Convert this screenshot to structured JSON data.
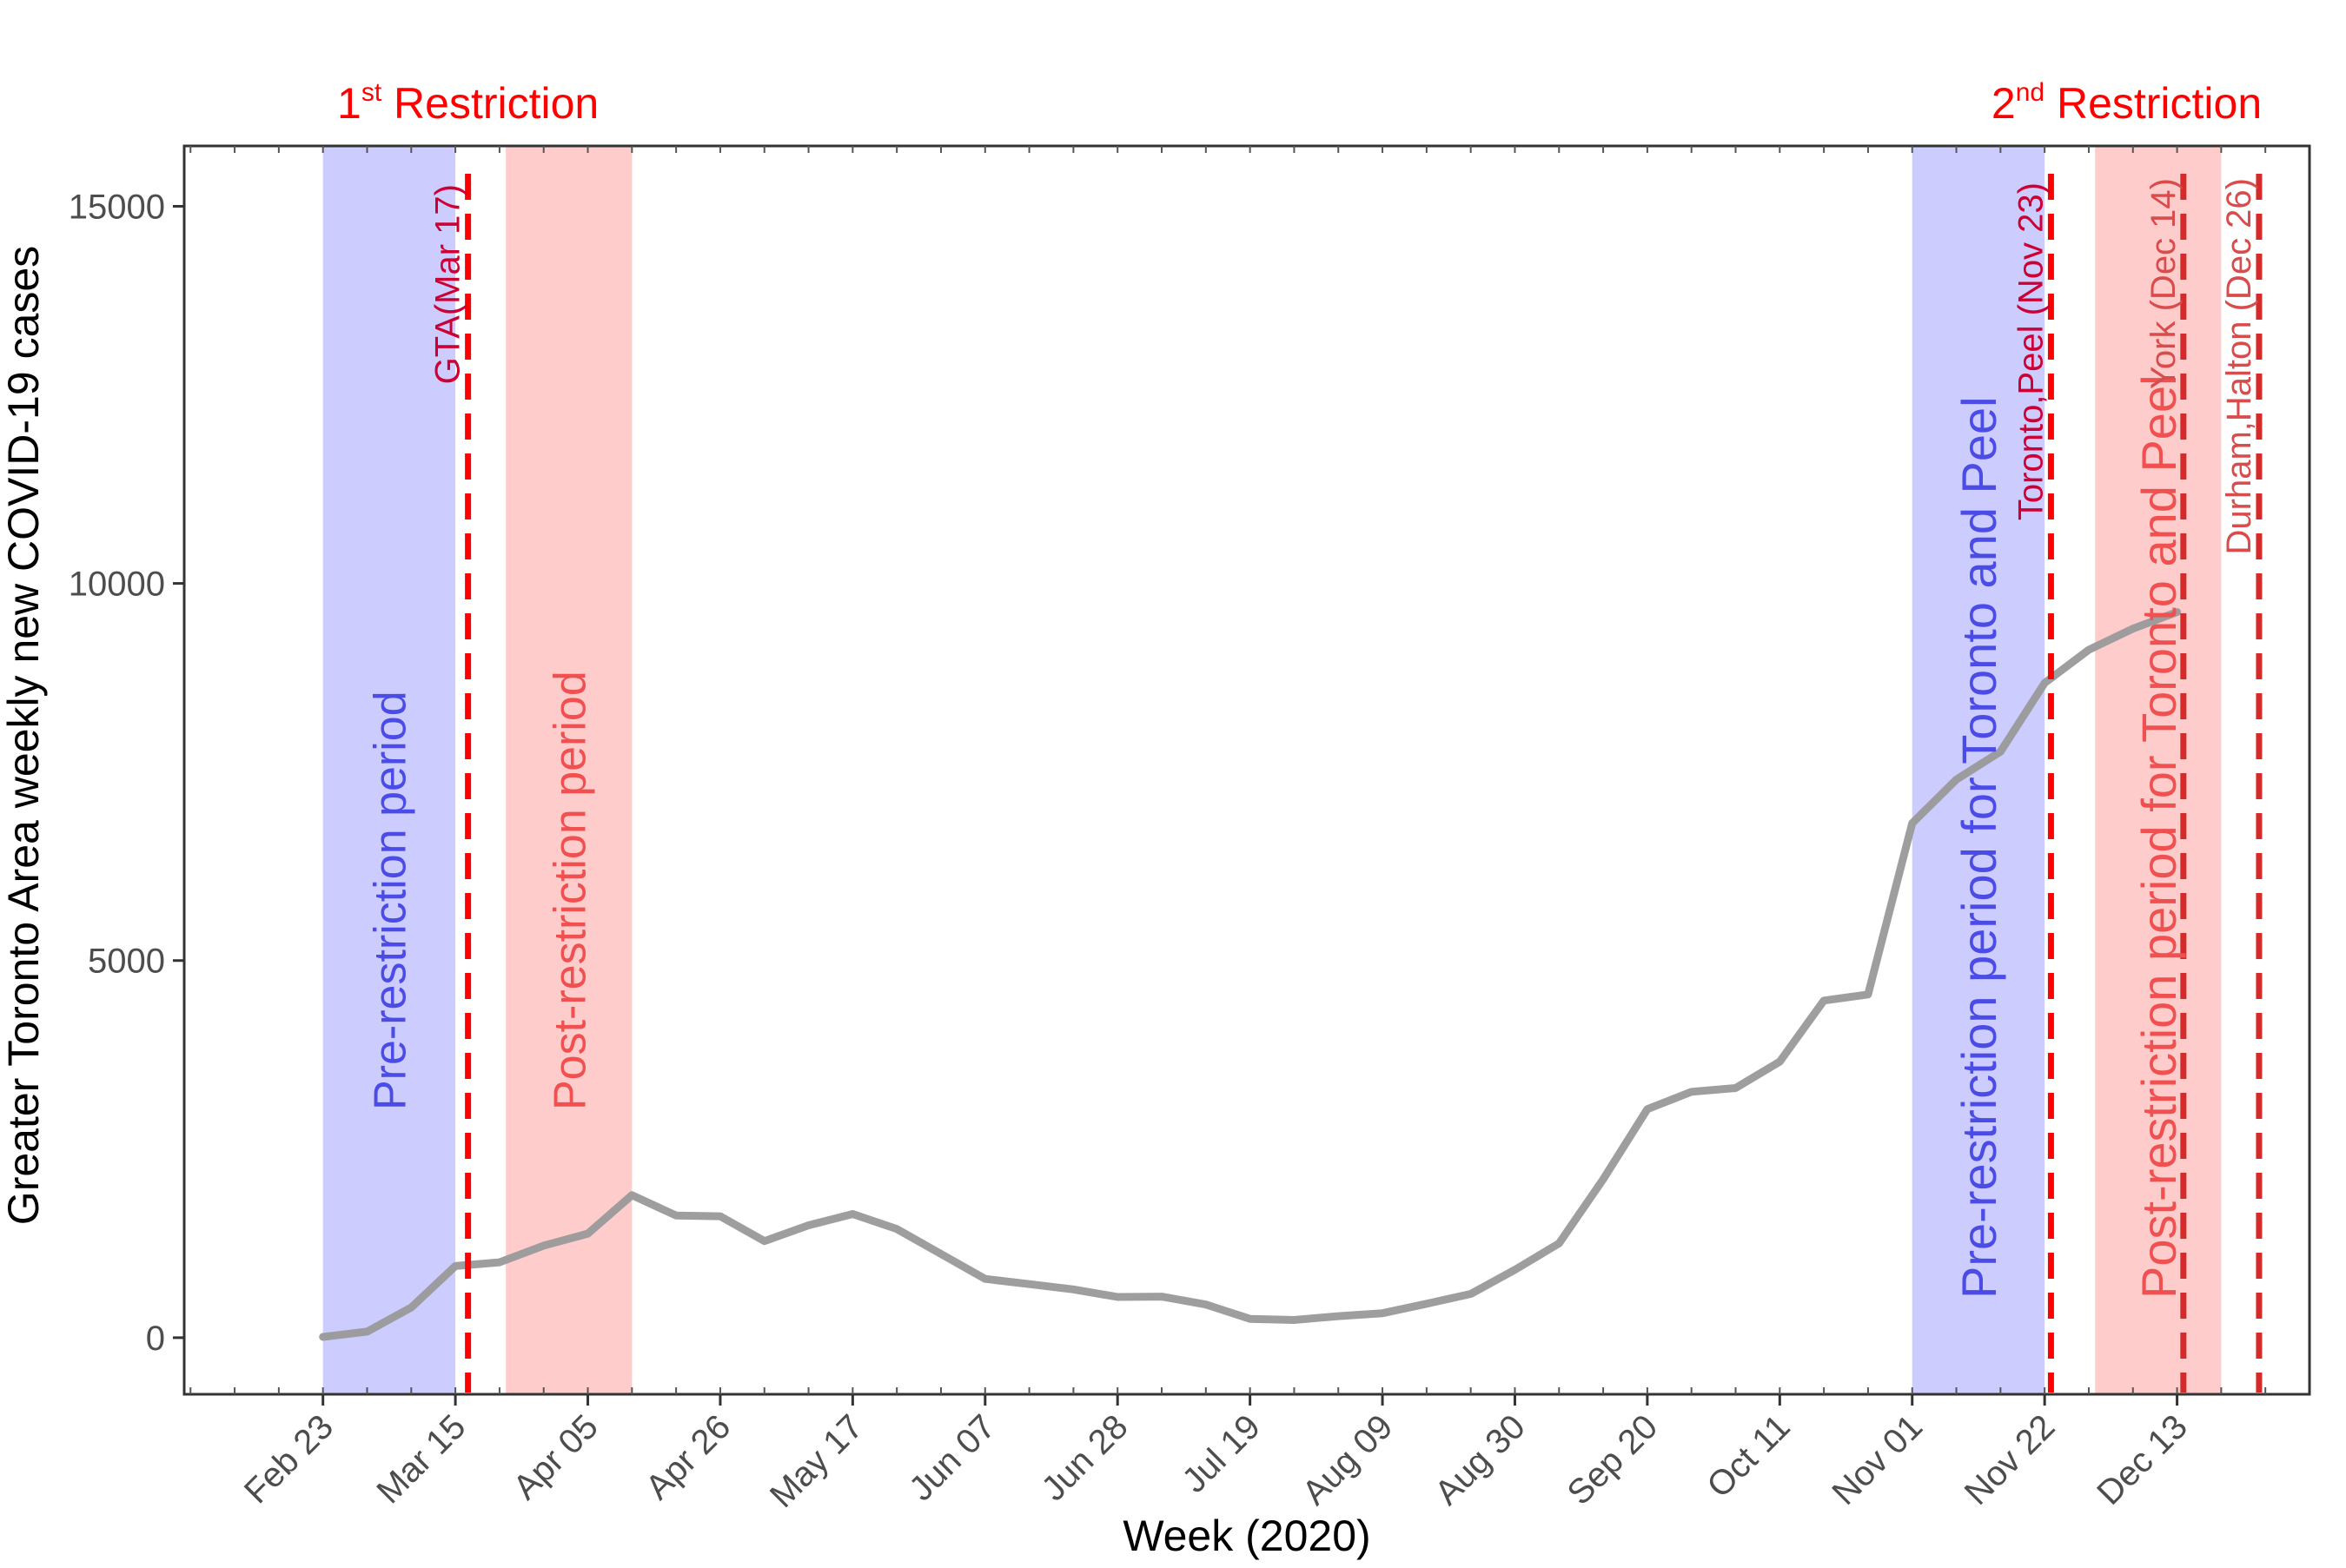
{
  "chart_data": {
    "type": "line",
    "title": "",
    "xlabel": "Week (2020)",
    "ylabel": "Greater Toronto Area weekly new COVID-19 cases",
    "ylim": [
      -750,
      15800
    ],
    "xlim": [
      "2020-02-01",
      "2021-01-03"
    ],
    "grid": false,
    "y_ticks": [
      0,
      5000,
      10000,
      15000
    ],
    "y_tick_labels": [
      "0",
      "5000",
      "10000",
      "15000"
    ],
    "x_ticks": [
      "2020-02-23",
      "2020-03-15",
      "2020-04-05",
      "2020-04-26",
      "2020-05-17",
      "2020-06-07",
      "2020-06-28",
      "2020-07-19",
      "2020-08-09",
      "2020-08-30",
      "2020-09-20",
      "2020-10-11",
      "2020-11-01",
      "2020-11-22",
      "2020-12-13"
    ],
    "x_tick_labels": [
      "Feb 23",
      "Mar 15",
      "Apr 05",
      "Apr 26",
      "May 17",
      "Jun 07",
      "Jun 28",
      "Jul 19",
      "Aug 09",
      "Aug 30",
      "Sep 20",
      "Oct 11",
      "Nov 01",
      "Nov 22",
      "Dec 13"
    ],
    "series": [
      {
        "name": "",
        "color": "#999999",
        "x": [
          "2020-02-23",
          "2020-03-01",
          "2020-03-08",
          "2020-03-15",
          "2020-03-22",
          "2020-03-29",
          "2020-04-05",
          "2020-04-12",
          "2020-04-19",
          "2020-04-26",
          "2020-05-03",
          "2020-05-10",
          "2020-05-17",
          "2020-05-24",
          "2020-05-31",
          "2020-06-07",
          "2020-06-14",
          "2020-06-21",
          "2020-06-28",
          "2020-07-05",
          "2020-07-12",
          "2020-07-19",
          "2020-07-26",
          "2020-08-02",
          "2020-08-09",
          "2020-08-16",
          "2020-08-23",
          "2020-08-30",
          "2020-09-06",
          "2020-09-13",
          "2020-09-20",
          "2020-09-27",
          "2020-10-04",
          "2020-10-11",
          "2020-10-18",
          "2020-10-25",
          "2020-11-01",
          "2020-11-08",
          "2020-11-15",
          "2020-11-22",
          "2020-11-29",
          "2020-12-06",
          "2020-12-13"
        ],
        "values": [
          10,
          80,
          400,
          950,
          1000,
          1220,
          1380,
          1890,
          1620,
          1610,
          1280,
          1490,
          1640,
          1440,
          1110,
          780,
          710,
          640,
          540,
          545,
          440,
          250,
          235,
          285,
          325,
          450,
          580,
          900,
          1250,
          2100,
          3030,
          3260,
          3310,
          3660,
          4470,
          4550,
          6820,
          7400,
          7770,
          8680,
          9120,
          9400,
          9620
        ]
      }
    ],
    "shaded_regions": [
      {
        "start": "2020-02-23",
        "end": "2020-03-15",
        "color": "#CCCCFF",
        "label": "Pre-restriction period",
        "label_color": "#4B4BE6"
      },
      {
        "start": "2020-03-23",
        "end": "2020-04-12",
        "color": "#FFCCCC",
        "label": "Post-restriction period",
        "label_color": "#F05050"
      },
      {
        "start": "2020-11-01",
        "end": "2020-11-22",
        "color": "#CCCCFF",
        "label": "Pre-restriction period for Toronto and Peel",
        "label_color": "#4B4BE6"
      },
      {
        "start": "2020-11-30",
        "end": "2020-12-20",
        "color": "#FFCCCC",
        "label": "Post-restriction period for Toronto and Peel",
        "label_color": "#F05050"
      }
    ],
    "vlines": [
      {
        "x": "2020-03-17",
        "label": "GTA(Mar 17)",
        "color": "#FF0000",
        "label_color": "#CC0033"
      },
      {
        "x": "2020-11-23",
        "label": "Toronto,Peel (Nov 23)",
        "color": "#FF0000",
        "label_color": "#CC0033"
      },
      {
        "x": "2020-12-14",
        "label": "York (Dec 14)",
        "color": "#D42A2A",
        "label_color": "#D94C4C"
      },
      {
        "x": "2020-12-26",
        "label": "Durham,Halton (Dec 26)",
        "color": "#D42A2A",
        "label_color": "#D94C4C"
      }
    ],
    "annotations": [
      {
        "base": "1",
        "sup": "st",
        "rest": " Restriction",
        "color": "#FF0000",
        "anchor_x": "2020-03-17"
      },
      {
        "base": "2",
        "sup": "nd",
        "rest": " Restriction",
        "color": "#FF0000",
        "anchor_x": "2020-12-05"
      }
    ]
  }
}
